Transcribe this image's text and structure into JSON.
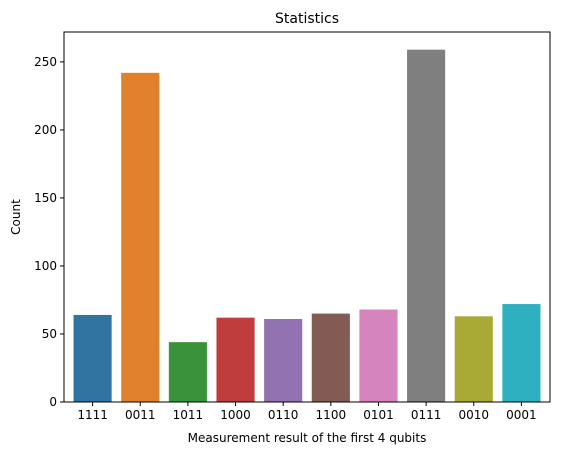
{
  "chart_data": {
    "type": "bar",
    "title": "Statistics",
    "xlabel": "Measurement result of the first 4 qubits",
    "ylabel": "Count",
    "categories": [
      "1111",
      "0011",
      "1011",
      "1000",
      "0110",
      "1100",
      "0101",
      "0111",
      "0010",
      "0001"
    ],
    "values": [
      64,
      242,
      44,
      62,
      61,
      65,
      68,
      259,
      63,
      72
    ],
    "colors": [
      "#3274a1",
      "#e1812c",
      "#3a923a",
      "#c03d3e",
      "#9372b2",
      "#845b53",
      "#d684bd",
      "#7f7f7f",
      "#a9aa35",
      "#2eb0c1"
    ],
    "ylim": [
      0,
      272
    ],
    "yticks": [
      0,
      50,
      100,
      150,
      200,
      250
    ],
    "grid": false,
    "legend": "none"
  }
}
